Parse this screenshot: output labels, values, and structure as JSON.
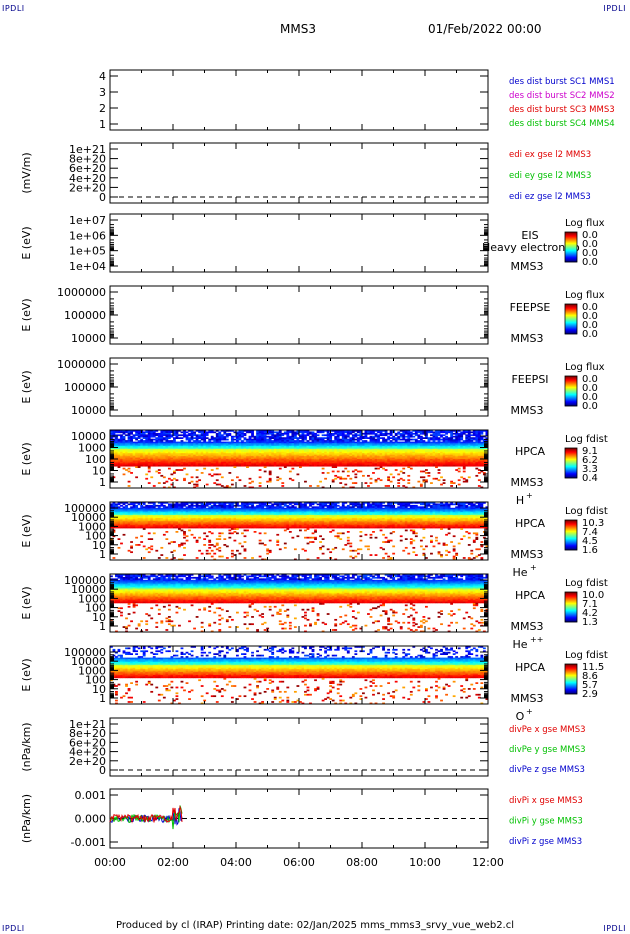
{
  "corner_tag": "IPDLI",
  "header": {
    "spacecraft": "MMS3",
    "date": "01/Feb/2022 00:00"
  },
  "footer": "Produced by cl (IRAP)   Printing date: 02/Jan/2025   mms_mms3_srvy_vue_web2.cl",
  "colors": {
    "red": "#e00000",
    "green": "#00c000",
    "blue": "#0000cc",
    "magenta": "#cc00cc",
    "black": "#000000"
  },
  "x_axis": {
    "ticks": [
      "00:00",
      "02:00",
      "04:00",
      "06:00",
      "08:00",
      "10:00",
      "12:00"
    ],
    "range_hours": [
      0,
      12
    ]
  },
  "chart_data": [
    {
      "id": "p1",
      "type": "line",
      "ylabel": "",
      "ytick_labels": [
        "4",
        "3",
        "2",
        "1"
      ],
      "legend": [
        {
          "text": "des dist burst SC1 MMS1",
          "color": "blue"
        },
        {
          "text": "des dist burst SC2 MMS2",
          "color": "magenta"
        },
        {
          "text": "des dist burst SC3 MMS3",
          "color": "red"
        },
        {
          "text": "des dist burst SC4 MMS4",
          "color": "green"
        }
      ],
      "series": []
    },
    {
      "id": "p2",
      "type": "line",
      "ylabel": "(mV/m)",
      "ytick_labels": [
        "1e+21",
        "8e+20",
        "6e+20",
        "4e+20",
        "2e+20",
        "0"
      ],
      "legend": [
        {
          "text": "edi ex gse l2 MMS3",
          "color": "red"
        },
        {
          "text": "edi ey gse l2 MMS3",
          "color": "green"
        },
        {
          "text": "edi ez gse l2 MMS3",
          "color": "blue"
        }
      ],
      "zero_line": true,
      "series": []
    },
    {
      "id": "p3",
      "type": "heatmap",
      "ylabel": "E (eV)",
      "ytick_labels": [
        "1e+07",
        "1e+06",
        "1e+05",
        "1e+04"
      ],
      "log": true,
      "labels": [
        "EIS",
        "MMS3"
      ],
      "overlay_text": "Heavy electron to",
      "cbar_title": "Log flux",
      "cbar_ticks": [
        "0.0",
        "0.0",
        "0.0",
        "0.0"
      ],
      "data": "empty"
    },
    {
      "id": "p4",
      "type": "heatmap",
      "ylabel": "E (eV)",
      "ytick_labels": [
        "1000000",
        "100000",
        "10000"
      ],
      "log": true,
      "labels": [
        "FEEPSE",
        "MMS3"
      ],
      "cbar_title": "Log flux",
      "cbar_ticks": [
        "0.0",
        "0.0",
        "0.0",
        "0.0"
      ],
      "data": "empty"
    },
    {
      "id": "p5",
      "type": "heatmap",
      "ylabel": "E (eV)",
      "ytick_labels": [
        "1000000",
        "100000",
        "10000"
      ],
      "log": true,
      "labels": [
        "FEEPSI",
        "MMS3"
      ],
      "cbar_title": "Log flux",
      "cbar_ticks": [
        "0.0",
        "0.0",
        "0.0",
        "0.0"
      ],
      "data": "empty"
    },
    {
      "id": "p6",
      "type": "heatmap",
      "ylabel": "E (eV)",
      "ytick_labels": [
        "10000",
        "1000",
        "100",
        "10",
        "1"
      ],
      "log": true,
      "labels": [
        "HPCA",
        "MMS3"
      ],
      "species": "H",
      "charge": "+",
      "cbar_title": "Log fdist",
      "cbar_ticks": [
        "9.1",
        "6.2",
        "3.3",
        "0.4"
      ],
      "data": "filled"
    },
    {
      "id": "p7",
      "type": "heatmap",
      "ylabel": "E (eV)",
      "ytick_labels": [
        "100000",
        "10000",
        "1000",
        "100",
        "10",
        "1"
      ],
      "log": true,
      "labels": [
        "HPCA",
        "MMS3"
      ],
      "species": "He",
      "charge": "+",
      "cbar_title": "Log fdist",
      "cbar_ticks": [
        "10.3",
        "7.4",
        "4.5",
        "1.6"
      ],
      "data": "filled"
    },
    {
      "id": "p8",
      "type": "heatmap",
      "ylabel": "E (eV)",
      "ytick_labels": [
        "100000",
        "10000",
        "1000",
        "100",
        "10",
        "1"
      ],
      "log": true,
      "labels": [
        "HPCA",
        "MMS3"
      ],
      "species": "He",
      "charge": "++",
      "cbar_title": "Log fdist",
      "cbar_ticks": [
        "10.0",
        "7.1",
        "4.2",
        "1.3"
      ],
      "data": "filled"
    },
    {
      "id": "p9",
      "type": "heatmap",
      "ylabel": "E (eV)",
      "ytick_labels": [
        "100000",
        "10000",
        "1000",
        "100",
        "10",
        "1"
      ],
      "log": true,
      "labels": [
        "HPCA",
        "MMS3"
      ],
      "species": "O",
      "charge": "+",
      "cbar_title": "Log fdist",
      "cbar_ticks": [
        "11.5",
        "8.6",
        "5.7",
        "2.9"
      ],
      "data": "filled"
    },
    {
      "id": "p10",
      "type": "line",
      "ylabel": "(nPa/km)",
      "ytick_labels": [
        "1e+21",
        "8e+20",
        "6e+20",
        "4e+20",
        "2e+20",
        "0"
      ],
      "legend": [
        {
          "text": "divPe x gse MMS3",
          "color": "red"
        },
        {
          "text": "divPe y gse MMS3",
          "color": "green"
        },
        {
          "text": "divPe z gse MMS3",
          "color": "blue"
        }
      ],
      "zero_line": true,
      "series": []
    },
    {
      "id": "p11",
      "type": "line",
      "ylabel": "(nPa/km)",
      "ytick_labels": [
        "0.001",
        "0.000",
        "-0.001"
      ],
      "ylim": [
        -0.0015,
        0.0015
      ],
      "legend": [
        {
          "text": "divPi x gse MMS3",
          "color": "red"
        },
        {
          "text": "divPi y gse MMS3",
          "color": "green"
        },
        {
          "text": "divPi z gse MMS3",
          "color": "blue"
        }
      ],
      "zero_line": true,
      "data_extent_hours": [
        0,
        2.3
      ],
      "series": [
        {
          "name": "divPi x gse MMS3",
          "color": "red"
        },
        {
          "name": "divPi y gse MMS3",
          "color": "green"
        },
        {
          "name": "divPi z gse MMS3",
          "color": "blue"
        }
      ]
    }
  ]
}
